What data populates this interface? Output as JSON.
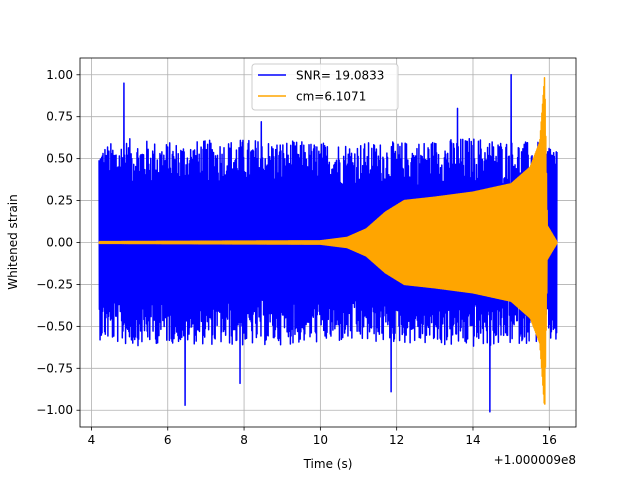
{
  "chart_data": {
    "type": "line",
    "title": "",
    "xlabel": "Time (s)",
    "ylabel": "Whitened strain",
    "x_offset_label": "+1.000009e8",
    "xlim": [
      3.7,
      16.7
    ],
    "ylim": [
      -1.1,
      1.1
    ],
    "x_ticks": [
      4,
      6,
      8,
      10,
      12,
      14,
      16
    ],
    "x_tick_labels": [
      "4",
      "6",
      "8",
      "10",
      "12",
      "14",
      "16"
    ],
    "y_ticks": [
      -1.0,
      -0.75,
      -0.5,
      -0.25,
      0.0,
      0.25,
      0.5,
      0.75,
      1.0
    ],
    "y_tick_labels": [
      "−1.00",
      "−0.75",
      "−0.50",
      "−0.25",
      "0.00",
      "0.25",
      "0.50",
      "0.75",
      "1.00"
    ],
    "grid": true,
    "legend_position": "top-center",
    "series": [
      {
        "name": "SNR= 19.0833",
        "color": "#0000ff",
        "kind": "noise",
        "x_range": [
          4.2,
          16.2
        ],
        "envelope_upper": [
          [
            4.2,
            0.58
          ],
          [
            5.0,
            0.62
          ],
          [
            6.0,
            0.6
          ],
          [
            8.0,
            0.62
          ],
          [
            10.0,
            0.6
          ],
          [
            12.0,
            0.6
          ],
          [
            14.0,
            0.63
          ],
          [
            15.5,
            0.6
          ],
          [
            16.2,
            0.6
          ]
        ],
        "peaks": [
          [
            4.85,
            0.95
          ],
          [
            6.45,
            -0.97
          ],
          [
            15.0,
            1.0
          ],
          [
            14.45,
            -1.01
          ],
          [
            11.85,
            -0.89
          ],
          [
            7.9,
            -0.84
          ],
          [
            8.45,
            0.72
          ],
          [
            13.6,
            0.8
          ]
        ]
      },
      {
        "name": "cm=6.1071",
        "color": "#ffa500",
        "kind": "chirp",
        "x_range": [
          4.2,
          16.2
        ],
        "envelope": [
          [
            4.2,
            0.005
          ],
          [
            10.0,
            0.01
          ],
          [
            10.7,
            0.03
          ],
          [
            11.2,
            0.08
          ],
          [
            11.7,
            0.18
          ],
          [
            12.2,
            0.25
          ],
          [
            13.0,
            0.27
          ],
          [
            14.0,
            0.3
          ],
          [
            15.0,
            0.35
          ],
          [
            15.5,
            0.45
          ],
          [
            15.75,
            0.6
          ],
          [
            15.88,
            1.0
          ],
          [
            15.95,
            0.1
          ],
          [
            16.2,
            0.005
          ]
        ]
      }
    ]
  }
}
